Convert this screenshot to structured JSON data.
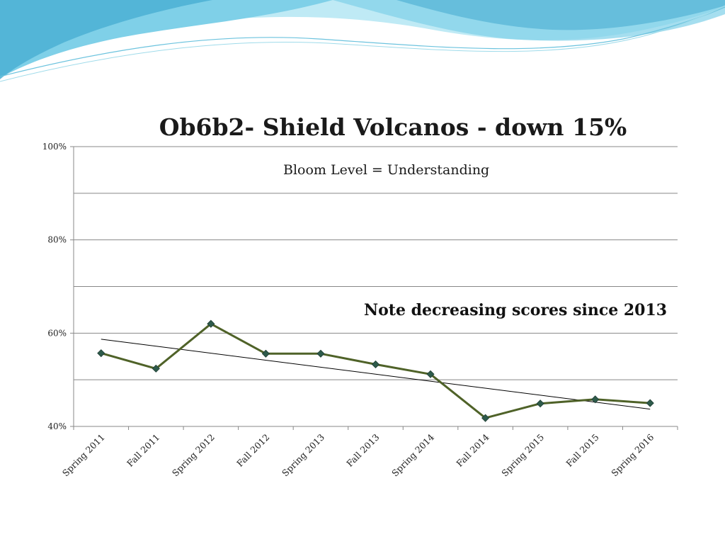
{
  "slide": {
    "title": "Ob6b2- Shield Volcanos - down 15%",
    "subtitle": "Bloom Level = Understanding",
    "note": "Note decreasing scores since 2013"
  },
  "colors": {
    "series": "#4f6228",
    "marker": "#2e5b4b",
    "trendline": "#000000",
    "grid": "#888888",
    "wave_light": "#bfeaf5",
    "wave_mid": "#7fd0e8",
    "wave_dark": "#49aed2"
  },
  "chart_data": {
    "type": "line",
    "title": "Ob6b2- Shield Volcanos - down 15%",
    "categories": [
      "Spring 2011",
      "Fall 2011",
      "Spring 2012",
      "Fall 2012",
      "Spring 2013",
      "Fall 2013",
      "Spring 2014",
      "Fall 2014",
      "Spring 2015",
      "Fall 2015",
      "Spring 2016"
    ],
    "series": [
      {
        "values": [
          55.7,
          52.4,
          62.0,
          55.6,
          55.6,
          53.3,
          51.2,
          41.8,
          44.9,
          45.8,
          45.0
        ]
      }
    ],
    "trendline": {
      "type": "linear",
      "start": 58.7,
      "end": 43.7
    },
    "ylim": [
      40,
      100
    ],
    "yticks": [
      40,
      60,
      80,
      100
    ],
    "ytick_labels": [
      "40%",
      "60%",
      "80%",
      "100%"
    ],
    "gridlines": [
      40,
      50,
      60,
      70,
      80,
      90,
      100
    ],
    "grid": true,
    "legend": "none",
    "xlabel": "",
    "ylabel": ""
  }
}
